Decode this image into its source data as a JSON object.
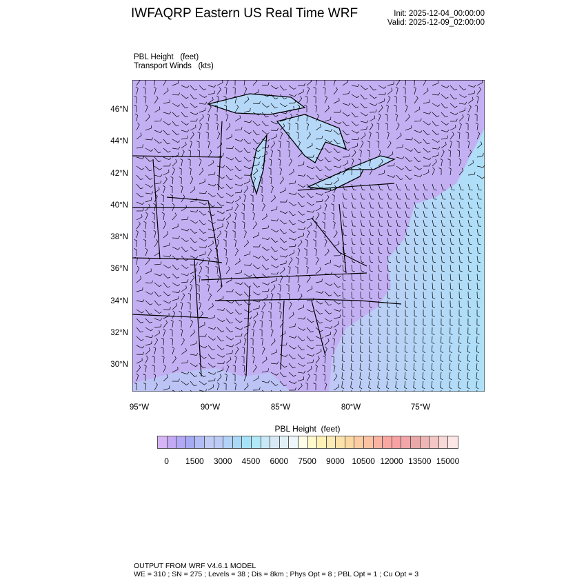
{
  "header": {
    "title": "IWFAQRP Eastern US Real Time WRF",
    "init": "Init: 2025-12-04_00:00:00",
    "valid": "Valid: 2025-12-09_02:00:00"
  },
  "fields": {
    "line1": "PBL Height   (feet)",
    "line2": "Transport Winds   (kts)"
  },
  "map": {
    "lat_labels": [
      "46°N",
      "44°N",
      "42°N",
      "40°N",
      "38°N",
      "36°N",
      "34°N",
      "32°N",
      "30°N"
    ],
    "lon_labels": [
      "95°W",
      "90°W",
      "85°W",
      "80°W",
      "75°W"
    ],
    "land_color": "#c3b0f3",
    "ocean_color": "#aee0f8",
    "overlay": "wind barbs, state and country boundaries"
  },
  "colorbar": {
    "title": "PBL Height  (feet)",
    "labels": [
      "0",
      "1500",
      "3000",
      "4500",
      "6000",
      "7500",
      "9000",
      "10500",
      "12000",
      "13500",
      "15000"
    ],
    "interval_ft": 500,
    "colors": [
      "#d6b4f6",
      "#c4a9f5",
      "#b2a8f6",
      "#a6aaf5",
      "#b2bcf5",
      "#c0ccf5",
      "#bccaf5",
      "#b2d2f8",
      "#aad9f8",
      "#a6e3f8",
      "#b2e9f8",
      "#c8e8f8",
      "#d8e9f6",
      "#e2f1f8",
      "#ecf6fb",
      "#fffde6",
      "#fff9cc",
      "#fff2b4",
      "#fdeab4",
      "#fde2aa",
      "#fcd9a4",
      "#fccca2",
      "#fcc2a2",
      "#fbb4a2",
      "#fba8a2",
      "#f8a2a4",
      "#f2a6a8",
      "#eaa8a8",
      "#f0b6b6",
      "#f5c6c6",
      "#f9d8d8",
      "#fde6e6"
    ]
  },
  "footer": {
    "line1": "OUTPUT FROM WRF V4.6.1 MODEL",
    "line2": "WE = 310 ; SN = 275 ; Levels = 38 ; Dis = 8km ; Phys Opt = 8 ; PBL Opt = 1 ; Cu Opt = 3"
  }
}
